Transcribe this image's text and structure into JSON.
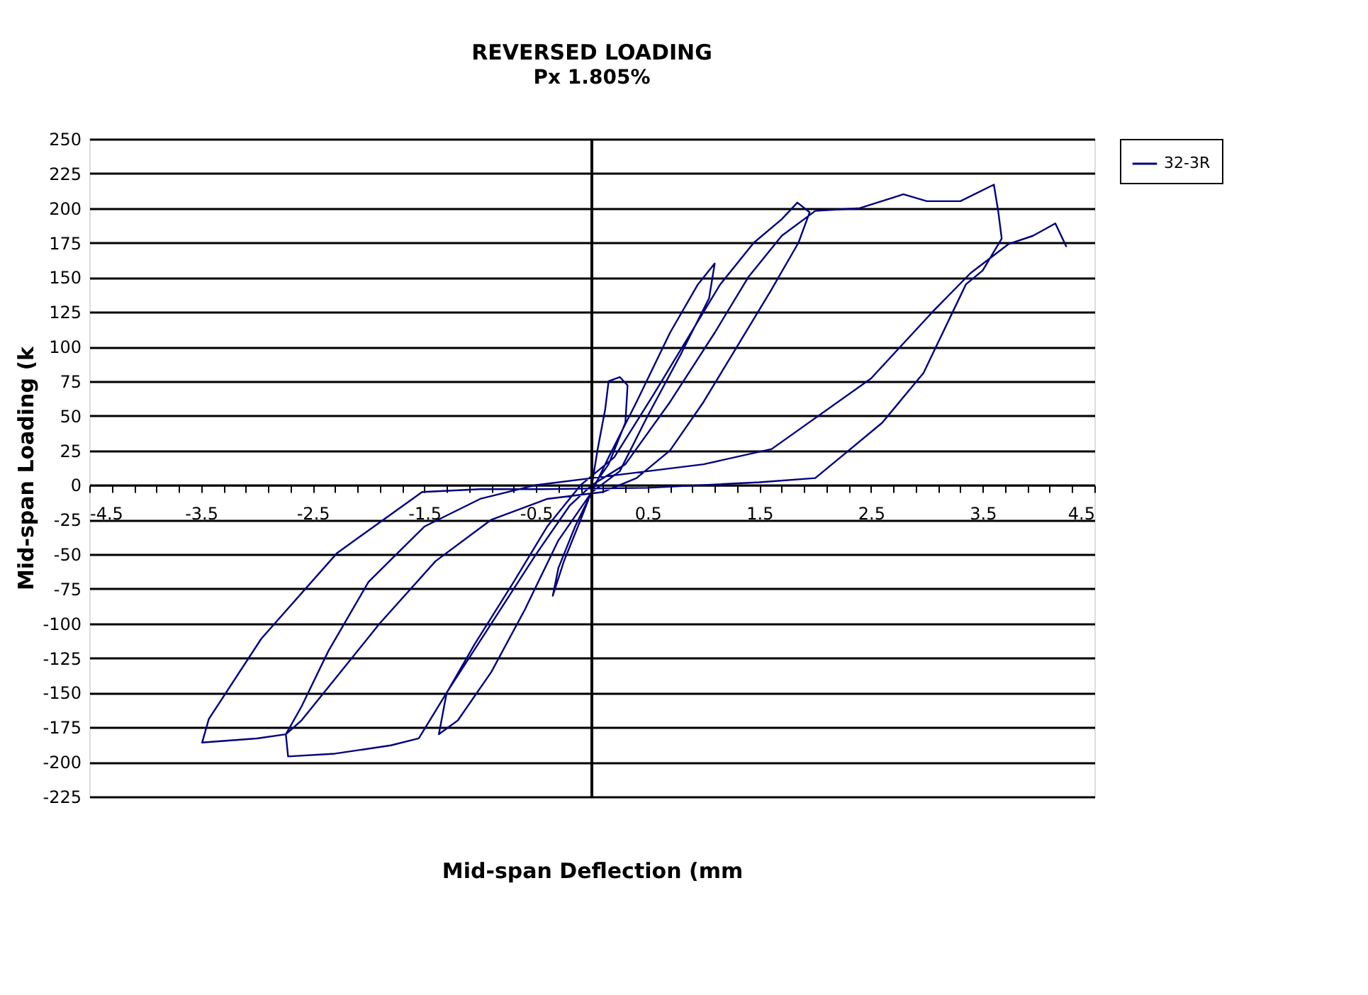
{
  "chart_data": {
    "type": "line",
    "title": "REVERSED LOADING",
    "subtitle": "Px 1.805%",
    "xlabel": "Mid-span Deflection (mm",
    "ylabel": "Mid-span Loading (k",
    "xlim": [
      -4.5,
      4.5
    ],
    "ylim": [
      -225,
      250
    ],
    "xticks": [
      -4.5,
      {
        "value": -4.3,
        "label": null
      },
      {
        "value": -4.1,
        "label": null
      },
      {
        "value": -3.9,
        "label": null
      },
      {
        "value": -3.7,
        "label": null
      },
      -3.5,
      {
        "value": -3.3,
        "label": null
      },
      {
        "value": -3.1,
        "label": null
      },
      {
        "value": -2.9,
        "label": null
      },
      {
        "value": -2.7,
        "label": null
      },
      -2.5,
      {
        "value": -2.3,
        "label": null
      },
      {
        "value": -2.1,
        "label": null
      },
      {
        "value": -1.9,
        "label": null
      },
      {
        "value": -1.7,
        "label": null
      },
      -1.5,
      {
        "value": -1.3,
        "label": null
      },
      {
        "value": -1.1,
        "label": null
      },
      {
        "value": -0.9,
        "label": null
      },
      {
        "value": -0.7,
        "label": null
      },
      -0.5,
      {
        "value": -0.3,
        "label": null
      },
      {
        "value": -0.1,
        "label": null
      },
      {
        "value": 0.1,
        "label": null
      },
      {
        "value": 0.3,
        "label": null
      },
      0.5,
      {
        "value": 0.7,
        "label": null
      },
      {
        "value": 0.9,
        "label": null
      },
      {
        "value": 1.1,
        "label": null
      },
      {
        "value": 1.3,
        "label": null
      },
      1.5,
      {
        "value": 1.7,
        "label": null
      },
      {
        "value": 1.9,
        "label": null
      },
      {
        "value": 2.1,
        "label": null
      },
      {
        "value": 2.3,
        "label": null
      },
      2.5,
      {
        "value": 2.7,
        "label": null
      },
      {
        "value": 2.9,
        "label": null
      },
      {
        "value": 3.1,
        "label": null
      },
      {
        "value": 3.3,
        "label": null
      },
      3.5,
      {
        "value": 3.7,
        "label": null
      },
      {
        "value": 3.9,
        "label": null
      },
      {
        "value": 4.1,
        "label": null
      },
      {
        "value": 4.3,
        "label": null
      },
      4.5
    ],
    "yticks": [
      -225,
      -200,
      -175,
      -150,
      -125,
      -100,
      -75,
      -50,
      -25,
      0,
      25,
      50,
      75,
      100,
      125,
      150,
      175,
      200,
      225,
      250
    ],
    "grid": "y",
    "legend": "right",
    "marker": "none",
    "line_style": "solid",
    "series": [
      {
        "name": "32-3R",
        "color": "#000080",
        "x": [
          0,
          0.05,
          0.12,
          0.15,
          0.25,
          0.32,
          0.3,
          0.15,
          0.02,
          -0.1,
          -0.25,
          -0.35,
          -0.3,
          -0.15,
          0,
          0.15,
          0.4,
          0.7,
          0.95,
          1.1,
          1.05,
          0.8,
          0.5,
          0.25,
          0,
          -0.3,
          -0.6,
          -0.9,
          -1.2,
          -1.37,
          -1.3,
          -1.05,
          -0.7,
          -0.4,
          -0.1,
          0.2,
          0.55,
          0.85,
          1.15,
          1.45,
          1.7,
          1.84,
          1.95,
          1.85,
          1.6,
          1.3,
          1.0,
          0.7,
          0.4,
          0.1,
          -0.4,
          -0.9,
          -1.4,
          -1.9,
          -2.3,
          -2.6,
          -2.74,
          -2.72,
          -2.3,
          -1.8,
          -1.55,
          -1.3,
          -0.9,
          -0.5,
          -0.2,
          0,
          0.3,
          0.7,
          1.1,
          1.4,
          1.7,
          2.0,
          2.4,
          2.79,
          3.0,
          3.3,
          3.6,
          3.64,
          3.67,
          3.5,
          3.35,
          2.97,
          2.6,
          2.21,
          2.0,
          1.5,
          0.5,
          -0.5,
          -1.0,
          -1.52,
          -2.28,
          -2.96,
          -3.43,
          -3.49,
          -3.0,
          -2.74,
          -2.6,
          -2.36,
          -2.0,
          -1.5,
          -1.0,
          -0.5,
          0,
          0.5,
          1.0,
          1.61,
          2.5,
          3.05,
          3.39,
          3.73,
          3.95,
          4.15,
          4.25
        ],
        "values": [
          0,
          25,
          55,
          75,
          78,
          72,
          45,
          15,
          0,
          -25,
          -55,
          -80,
          -60,
          -30,
          -5,
          20,
          60,
          110,
          145,
          160,
          135,
          95,
          50,
          10,
          -5,
          -40,
          -90,
          -135,
          -170,
          -180,
          -150,
          -115,
          -70,
          -30,
          0,
          20,
          65,
          105,
          145,
          175,
          192,
          204,
          197,
          175,
          140,
          100,
          60,
          25,
          5,
          -5,
          -10,
          -25,
          -55,
          -100,
          -140,
          -170,
          -180,
          -196,
          -194,
          -188,
          -183,
          -150,
          -100,
          -50,
          -15,
          0,
          15,
          60,
          110,
          150,
          180,
          198,
          200,
          210,
          205,
          205,
          217,
          197,
          178,
          155,
          145,
          81,
          45,
          19,
          5,
          2,
          -2,
          -3,
          -3,
          -5,
          -49,
          -111,
          -169,
          -186,
          -183,
          -180,
          -160,
          -120,
          -70,
          -30,
          -10,
          0,
          5,
          10,
          15,
          26,
          77,
          125,
          153,
          174,
          180,
          189,
          172
        ]
      }
    ]
  }
}
